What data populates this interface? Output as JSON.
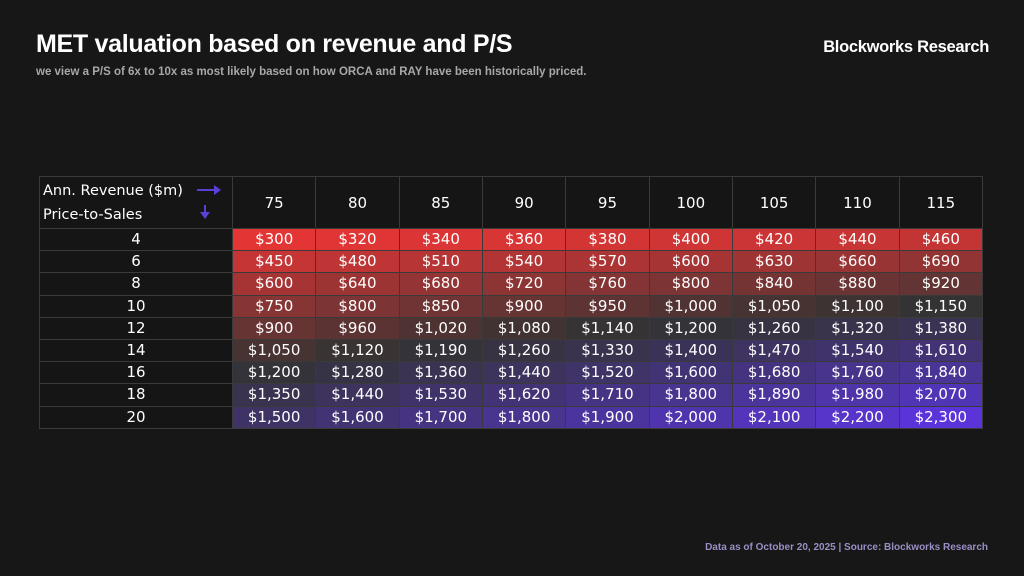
{
  "header": {
    "title": "MET valuation based on revenue and P/S",
    "subtitle": "we view a P/S of 6x to 10x as most likely based on how ORCA and RAY have been historically priced.",
    "brand": "Blockworks Research"
  },
  "footer": {
    "source": "Data as of October 20, 2025 | Source: Blockworks Research"
  },
  "colors": {
    "low": "#e43535",
    "mid": "#333333",
    "high": "#5a34d8",
    "arrow": "#5b3fd6"
  },
  "chart_data": {
    "type": "heatmap",
    "title": "MET valuation based on revenue and P/S",
    "xlabel": "Ann. Revenue ($m)",
    "ylabel": "Price-to-Sales",
    "x": [
      "75",
      "80",
      "85",
      "90",
      "95",
      "100",
      "105",
      "110",
      "115"
    ],
    "y": [
      "4",
      "6",
      "8",
      "10",
      "12",
      "14",
      "16",
      "18",
      "20"
    ],
    "values": [
      [
        "$300",
        "$320",
        "$340",
        "$360",
        "$380",
        "$400",
        "$420",
        "$440",
        "$460"
      ],
      [
        "$450",
        "$480",
        "$510",
        "$540",
        "$570",
        "$600",
        "$630",
        "$660",
        "$690"
      ],
      [
        "$600",
        "$640",
        "$680",
        "$720",
        "$760",
        "$800",
        "$840",
        "$880",
        "$920"
      ],
      [
        "$750",
        "$800",
        "$850",
        "$900",
        "$950",
        "$1,000",
        "$1,050",
        "$1,100",
        "$1,150"
      ],
      [
        "$900",
        "$960",
        "$1,020",
        "$1,080",
        "$1,140",
        "$1,200",
        "$1,260",
        "$1,320",
        "$1,380"
      ],
      [
        "$1,050",
        "$1,120",
        "$1,190",
        "$1,260",
        "$1,330",
        "$1,400",
        "$1,470",
        "$1,540",
        "$1,610"
      ],
      [
        "$1,200",
        "$1,280",
        "$1,360",
        "$1,440",
        "$1,520",
        "$1,600",
        "$1,680",
        "$1,760",
        "$1,840"
      ],
      [
        "$1,350",
        "$1,440",
        "$1,530",
        "$1,620",
        "$1,710",
        "$1,800",
        "$1,890",
        "$1,980",
        "$2,070"
      ],
      [
        "$1,500",
        "$1,600",
        "$1,700",
        "$1,800",
        "$1,900",
        "$2,000",
        "$2,100",
        "$2,200",
        "$2,300"
      ]
    ],
    "color_scale": {
      "min": 300,
      "mid": 1150,
      "max": 2300
    }
  }
}
